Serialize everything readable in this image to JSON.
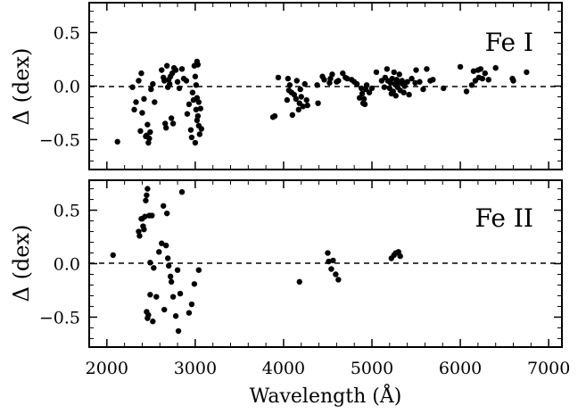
{
  "chart_data": [
    {
      "type": "scatter",
      "panel_label": "Fe I",
      "xlabel": "",
      "ylabel": "Δ (dex)",
      "xlim": [
        1800,
        7150
      ],
      "ylim": [
        -0.78,
        0.78
      ],
      "yticks": [
        0.5,
        0.0,
        -0.5
      ],
      "ytick_labels": [
        "0.5",
        "0.0",
        "−0.5"
      ],
      "reference_line": 0.0,
      "x": [
        2120,
        2290,
        2310,
        2330,
        2360,
        2380,
        2390,
        2400,
        2420,
        2440,
        2450,
        2460,
        2470,
        2480,
        2490,
        2500,
        2520,
        2540,
        2620,
        2640,
        2650,
        2660,
        2670,
        2680,
        2690,
        2700,
        2710,
        2720,
        2730,
        2740,
        2750,
        2760,
        2780,
        2800,
        2820,
        2850,
        2870,
        2900,
        2910,
        2930,
        2950,
        2960,
        2970,
        2980,
        2990,
        3000,
        3000,
        3010,
        3010,
        3020,
        3020,
        3020,
        3030,
        3030,
        3040,
        3040,
        3050,
        3060,
        3070,
        3880,
        3900,
        3940,
        4040,
        4050,
        4060,
        4070,
        4090,
        4100,
        4120,
        4140,
        4150,
        4170,
        4180,
        4190,
        4200,
        4220,
        4240,
        4260,
        4270,
        4380,
        4390,
        4440,
        4460,
        4520,
        4530,
        4550,
        4600,
        4620,
        4670,
        4700,
        4720,
        4770,
        4800,
        4830,
        4860,
        4880,
        4890,
        4900,
        4910,
        4920,
        4930,
        4940,
        4970,
        5000,
        5050,
        5110,
        5140,
        5150,
        5170,
        5180,
        5200,
        5210,
        5220,
        5230,
        5240,
        5250,
        5260,
        5270,
        5280,
        5290,
        5300,
        5310,
        5320,
        5340,
        5350,
        5360,
        5370,
        5400,
        5420,
        5450,
        5490,
        5500,
        5540,
        5580,
        5620,
        5660,
        5690,
        5810,
        6000,
        6070,
        6130,
        6150,
        6170,
        6200,
        6210,
        6230,
        6250,
        6280,
        6320,
        6400,
        6590,
        6600,
        6750
      ],
      "y": [
        -0.52,
        -0.01,
        -0.22,
        -0.15,
        0.05,
        -0.42,
        0.12,
        -0.25,
        -0.12,
        -0.47,
        -0.46,
        -0.36,
        -0.53,
        -0.49,
        -0.43,
        -0.03,
        0.02,
        -0.15,
        0.15,
        0.08,
        0.05,
        -0.35,
        -0.39,
        0.19,
        -0.01,
        0.06,
        0.02,
        0.09,
        -0.3,
        0.12,
        -0.35,
        0.17,
        0.15,
        0.04,
        -0.02,
        0.16,
        0.07,
        0.05,
        -0.26,
        -0.17,
        -0.41,
        -0.48,
        -0.06,
        -0.13,
        0.19,
        0.09,
        -0.53,
        0.01,
        -0.22,
        0.23,
        -0.11,
        -0.32,
        0.2,
        -0.28,
        -0.15,
        -0.37,
        -0.45,
        -0.21,
        -0.4,
        -0.29,
        -0.28,
        0.08,
        -0.13,
        0.07,
        -0.04,
        0.01,
        -0.06,
        -0.27,
        -0.08,
        -0.12,
        0.05,
        -0.22,
        -0.16,
        -0.03,
        -0.1,
        -0.19,
        0.02,
        -0.13,
        -0.18,
        0.01,
        -0.16,
        0.09,
        0.06,
        0.03,
        0.07,
        0.11,
        0.04,
        0.05,
        0.12,
        0.08,
        0.07,
        0.06,
        0.04,
        0.02,
        -0.11,
        -0.02,
        -0.07,
        -0.16,
        -0.12,
        -0.17,
        -0.03,
        0.01,
        -0.06,
        -0.02,
        0.13,
        0.05,
        -0.01,
        0.08,
        0.16,
        0.05,
        -0.02,
        0.03,
        -0.07,
        0.07,
        -0.05,
        0.13,
        0.02,
        -0.09,
        0.06,
        -0.01,
        0.03,
        0.11,
        -0.04,
        0.05,
        0.02,
        -0.06,
        0.0,
        0.04,
        -0.08,
        0.07,
        0.03,
        0.15,
        0.04,
        -0.03,
        0.16,
        0.05,
        0.06,
        -0.02,
        0.18,
        -0.05,
        0.01,
        0.14,
        0.05,
        0.15,
        0.08,
        0.16,
        0.07,
        0.12,
        0.06,
        0.17,
        0.07,
        0.05,
        0.13
      ]
    },
    {
      "type": "scatter",
      "panel_label": "Fe II",
      "xlabel": "Wavelength (Å)",
      "ylabel": "Δ (dex)",
      "xlim": [
        1800,
        7150
      ],
      "ylim": [
        -0.78,
        0.78
      ],
      "yticks": [
        0.5,
        0.0,
        -0.5
      ],
      "ytick_labels": [
        "0.5",
        "0.0",
        "−0.5"
      ],
      "xticks": [
        2000,
        3000,
        4000,
        5000,
        6000,
        7000
      ],
      "xtick_labels": [
        "2000",
        "3000",
        "4000",
        "5000",
        "6000",
        "7000"
      ],
      "reference_line": 0.0,
      "x": [
        2070,
        2360,
        2370,
        2390,
        2400,
        2410,
        2420,
        2430,
        2440,
        2450,
        2450,
        2460,
        2460,
        2470,
        2480,
        2490,
        2490,
        2510,
        2520,
        2530,
        2560,
        2590,
        2620,
        2640,
        2650,
        2670,
        2680,
        2690,
        2700,
        2720,
        2730,
        2750,
        2780,
        2800,
        2810,
        2830,
        2850,
        2930,
        2960,
        2990,
        3040,
        4180,
        4500,
        4510,
        4540,
        4560,
        4590,
        4620,
        5220,
        5250,
        5270,
        5300,
        5320
      ],
      "y": [
        0.08,
        0.3,
        0.26,
        0.42,
        0.42,
        0.35,
        0.32,
        0.44,
        0.59,
        0.64,
        -0.45,
        0.7,
        -0.51,
        -0.48,
        0.45,
        -0.29,
        0.01,
        0.45,
        -0.54,
        -0.04,
        -0.31,
        0.11,
        0.19,
        0.54,
        -0.43,
        0.17,
        0.47,
        0.05,
        -0.02,
        -0.12,
        -0.17,
        -0.31,
        -0.49,
        -0.06,
        -0.63,
        -0.28,
        0.67,
        -0.46,
        -0.38,
        -0.19,
        -0.06,
        -0.17,
        0.1,
        0.02,
        -0.05,
        0.03,
        -0.1,
        -0.15,
        0.05,
        0.08,
        0.1,
        0.11,
        0.07
      ]
    }
  ]
}
